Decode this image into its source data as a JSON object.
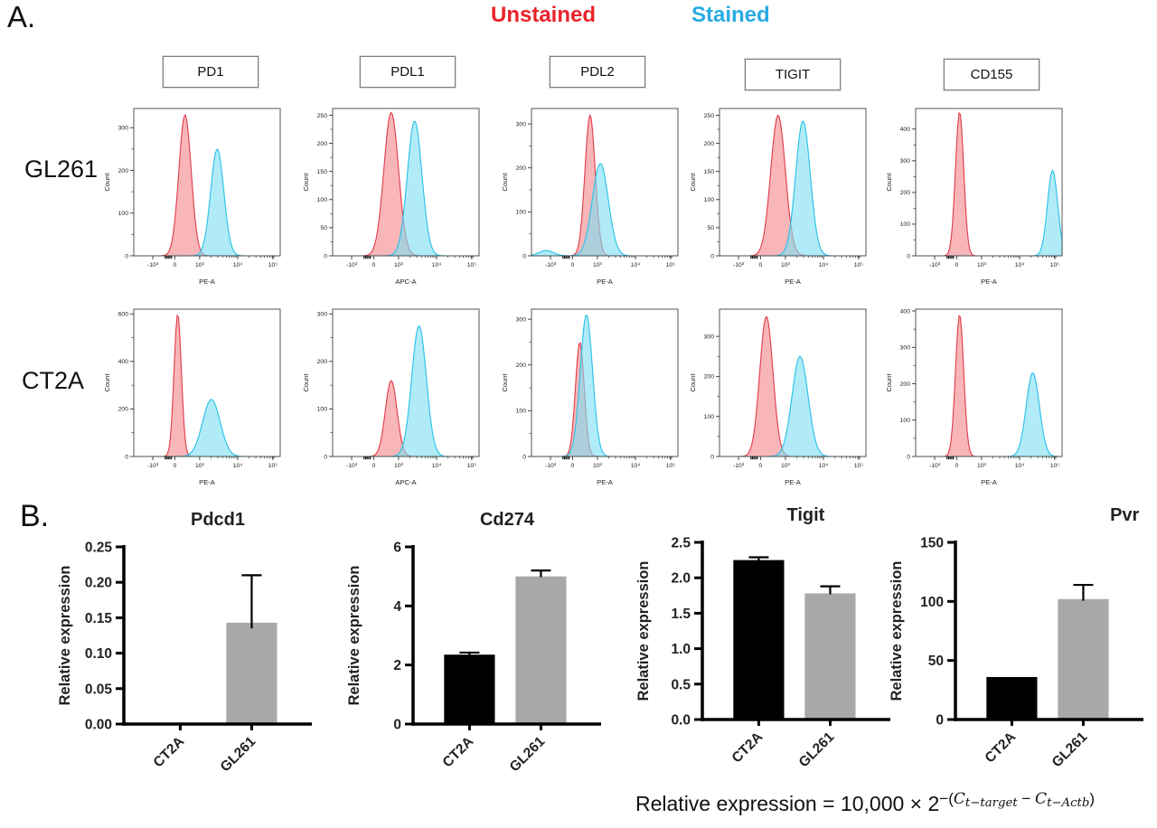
{
  "panel_a": {
    "label": "A.",
    "legend": {
      "unstained_label": "Unstained",
      "unstained_color": "#e8232a",
      "stained_label": "Stained",
      "stained_color": "#29abe2"
    },
    "column_headers": [
      "PD1",
      "PDL1",
      "PDL2",
      "TIGIT",
      "CD155"
    ],
    "row_labels": [
      "GL261",
      "CT2A"
    ]
  },
  "panel_b": {
    "label": "B.",
    "formula": {
      "base": "Relative expression = 10,000 × 2",
      "exp_open": "−(",
      "c1": "C",
      "sub1": "t−target",
      "minus": " − ",
      "c2": "C",
      "sub2": "t−Actb",
      "exp_close": ")"
    }
  },
  "chart_data": [
    {
      "id": "hist-gl261-pd1",
      "type": "area",
      "subtype": "flow-histogram",
      "cell_line": "GL261",
      "marker": "PD1",
      "xlabel": "PE-A",
      "ylabel": "Count",
      "x_ticks": [
        "-10³",
        "0",
        "10³",
        "10⁴",
        "10⁵"
      ],
      "y_ticks": [
        0,
        100,
        200,
        300
      ],
      "ymax": 345,
      "series": [
        {
          "name": "Unstained",
          "peak_frac": 0.35,
          "peak_count": 330,
          "sigma": 0.042,
          "peak_channel": "~4×10²",
          "fill": "#f4898e",
          "stroke": "#e23a47"
        },
        {
          "name": "Stained",
          "peak_frac": 0.57,
          "peak_count": 250,
          "sigma": 0.045,
          "peak_channel": "~3×10³",
          "fill": "#7fdff2",
          "stroke": "#27c0e8"
        }
      ]
    },
    {
      "id": "hist-gl261-pdl1",
      "type": "area",
      "subtype": "flow-histogram",
      "cell_line": "GL261",
      "marker": "PDL1",
      "xlabel": "APC-A",
      "ylabel": "Count",
      "x_ticks": [
        "-10³",
        "0",
        "10³",
        "10⁴",
        "10⁵"
      ],
      "y_ticks": [
        0,
        50,
        100,
        150,
        200,
        250
      ],
      "ymax": 262,
      "series": [
        {
          "name": "Unstained",
          "peak_frac": 0.4,
          "peak_count": 255,
          "sigma": 0.05,
          "peak_channel": "~8×10²",
          "fill": "#f4898e",
          "stroke": "#e23a47"
        },
        {
          "name": "Stained",
          "peak_frac": 0.56,
          "peak_count": 240,
          "sigma": 0.05,
          "peak_channel": "~3×10³",
          "fill": "#7fdff2",
          "stroke": "#27c0e8"
        }
      ]
    },
    {
      "id": "hist-gl261-pdl2",
      "type": "area",
      "subtype": "flow-histogram",
      "cell_line": "GL261",
      "marker": "PDL2",
      "xlabel": "PE-A",
      "ylabel": "Count",
      "x_ticks": [
        "-10³",
        "0",
        "10³",
        "10⁴",
        "10⁵"
      ],
      "y_ticks": [
        0,
        100,
        200,
        300
      ],
      "ymax": 335,
      "series": [
        {
          "name": "Unstained",
          "peak_frac": 0.4,
          "peak_count": 320,
          "sigma": 0.035,
          "peak_channel": "~5×10²",
          "fill": "#f4898e",
          "stroke": "#e23a47"
        },
        {
          "name": "Stained",
          "peak_frac": 0.47,
          "peak_count": 210,
          "sigma": 0.055,
          "peak_channel": "~10³",
          "fill": "#7fdff2",
          "stroke": "#27c0e8",
          "bumps": [
            {
              "x": 0.1,
              "h": 12,
              "sigma": 0.05
            }
          ]
        }
      ]
    },
    {
      "id": "hist-gl261-tigit",
      "type": "area",
      "subtype": "flow-histogram",
      "cell_line": "GL261",
      "marker": "TIGIT",
      "xlabel": "PE-A",
      "ylabel": "Count",
      "x_ticks": [
        "-10³",
        "0",
        "10³",
        "10⁴",
        "10⁵"
      ],
      "y_ticks": [
        0,
        50,
        100,
        150,
        200,
        250
      ],
      "ymax": 262,
      "series": [
        {
          "name": "Unstained",
          "peak_frac": 0.4,
          "peak_count": 250,
          "sigma": 0.05,
          "peak_channel": "~7×10²",
          "fill": "#f4898e",
          "stroke": "#e23a47"
        },
        {
          "name": "Stained",
          "peak_frac": 0.57,
          "peak_count": 240,
          "sigma": 0.05,
          "peak_channel": "~3×10³",
          "fill": "#7fdff2",
          "stroke": "#27c0e8"
        }
      ]
    },
    {
      "id": "hist-gl261-cd155",
      "type": "area",
      "subtype": "flow-histogram",
      "cell_line": "GL261",
      "marker": "CD155",
      "xlabel": "PE-A",
      "ylabel": "Count",
      "x_ticks": [
        "-10³",
        "0",
        "10³",
        "10⁴",
        "10⁵"
      ],
      "y_ticks": [
        0,
        100,
        200,
        300,
        400
      ],
      "ymax": 465,
      "series": [
        {
          "name": "Unstained",
          "peak_frac": 0.3,
          "peak_count": 455,
          "sigma": 0.028,
          "peak_channel": "~2×10²",
          "fill": "#f4898e",
          "stroke": "#e23a47"
        },
        {
          "name": "Stained",
          "peak_frac": 0.935,
          "peak_count": 270,
          "sigma": 0.035,
          "peak_channel": "~8×10⁴",
          "fill": "#7fdff2",
          "stroke": "#27c0e8"
        }
      ]
    },
    {
      "id": "hist-ct2a-pd1",
      "type": "area",
      "subtype": "flow-histogram",
      "cell_line": "CT2A",
      "marker": "PD1",
      "xlabel": "PE-A",
      "ylabel": "Count",
      "x_ticks": [
        "-10³",
        "0",
        "10³",
        "10⁴",
        "10⁵"
      ],
      "y_ticks": [
        0,
        200,
        400,
        600
      ],
      "ymax": 620,
      "series": [
        {
          "name": "Unstained",
          "peak_frac": 0.3,
          "peak_count": 600,
          "sigma": 0.025,
          "peak_channel": "~1.5×10²",
          "fill": "#f4898e",
          "stroke": "#e23a47"
        },
        {
          "name": "Stained",
          "peak_frac": 0.53,
          "peak_count": 240,
          "sigma": 0.06,
          "peak_channel": "~2×10³",
          "fill": "#7fdff2",
          "stroke": "#27c0e8"
        }
      ]
    },
    {
      "id": "hist-ct2a-pdl1",
      "type": "area",
      "subtype": "flow-histogram",
      "cell_line": "CT2A",
      "marker": "PDL1",
      "xlabel": "APC-A",
      "ylabel": "Count",
      "x_ticks": [
        "-10³",
        "0",
        "10³",
        "10⁴",
        "10⁵"
      ],
      "y_ticks": [
        0,
        100,
        200,
        300
      ],
      "ymax": 310,
      "series": [
        {
          "name": "Unstained",
          "peak_frac": 0.4,
          "peak_count": 160,
          "sigma": 0.04,
          "peak_channel": "~6×10²",
          "fill": "#f4898e",
          "stroke": "#e23a47"
        },
        {
          "name": "Stained",
          "peak_frac": 0.59,
          "peak_count": 275,
          "sigma": 0.05,
          "peak_channel": "~3×10³",
          "fill": "#7fdff2",
          "stroke": "#27c0e8"
        }
      ]
    },
    {
      "id": "hist-ct2a-pdl2",
      "type": "area",
      "subtype": "flow-histogram",
      "cell_line": "CT2A",
      "marker": "PDL2",
      "xlabel": "PE-A",
      "ylabel": "Count",
      "x_ticks": [
        "-10³",
        "0",
        "10³",
        "10⁴",
        "10⁵"
      ],
      "y_ticks": [
        0,
        100,
        200,
        300
      ],
      "ymax": 322,
      "series": [
        {
          "name": "Unstained",
          "peak_frac": 0.33,
          "peak_count": 250,
          "sigma": 0.03,
          "peak_channel": "~3×10²",
          "fill": "#f4898e",
          "stroke": "#e23a47"
        },
        {
          "name": "Stained",
          "peak_frac": 0.375,
          "peak_count": 310,
          "sigma": 0.042,
          "peak_channel": "~5×10²",
          "fill": "#7fdff2",
          "stroke": "#27c0e8"
        }
      ]
    },
    {
      "id": "hist-ct2a-tigit",
      "type": "area",
      "subtype": "flow-histogram",
      "cell_line": "CT2A",
      "marker": "TIGIT",
      "xlabel": "PE-A",
      "ylabel": "Count",
      "x_ticks": [
        "-10³",
        "0",
        "10³",
        "10⁴",
        "10⁵"
      ],
      "y_ticks": [
        0,
        100,
        200,
        300
      ],
      "ymax": 368,
      "series": [
        {
          "name": "Unstained",
          "peak_frac": 0.32,
          "peak_count": 350,
          "sigma": 0.045,
          "peak_channel": "~3×10²",
          "fill": "#f4898e",
          "stroke": "#e23a47"
        },
        {
          "name": "Stained",
          "peak_frac": 0.55,
          "peak_count": 250,
          "sigma": 0.055,
          "peak_channel": "~2.5×10³",
          "fill": "#7fdff2",
          "stroke": "#27c0e8"
        }
      ]
    },
    {
      "id": "hist-ct2a-cd155",
      "type": "area",
      "subtype": "flow-histogram",
      "cell_line": "CT2A",
      "marker": "CD155",
      "xlabel": "PE-A",
      "ylabel": "Count",
      "x_ticks": [
        "-10³",
        "0",
        "10³",
        "10⁴",
        "10⁵"
      ],
      "y_ticks": [
        0,
        100,
        200,
        300,
        400
      ],
      "ymax": 405,
      "series": [
        {
          "name": "Unstained",
          "peak_frac": 0.3,
          "peak_count": 390,
          "sigma": 0.028,
          "peak_channel": "~2×10²",
          "fill": "#f4898e",
          "stroke": "#e23a47"
        },
        {
          "name": "Stained",
          "peak_frac": 0.8,
          "peak_count": 230,
          "sigma": 0.045,
          "peak_channel": "~3×10⁴",
          "fill": "#7fdff2",
          "stroke": "#27c0e8"
        }
      ]
    },
    {
      "id": "bar-pdcd1",
      "type": "bar",
      "title": "Pdcd1",
      "ylabel": "Relative expression",
      "categories": [
        "CT2A",
        "GL261"
      ],
      "values": [
        0,
        0.143
      ],
      "errors": [
        0,
        0.067
      ],
      "bar_colors": [
        "#000000",
        "#a8a8a8"
      ],
      "y_tick_labels": [
        "0.00",
        "0.05",
        "0.10",
        "0.15",
        "0.20",
        "0.25"
      ],
      "y_tick_values": [
        0,
        0.05,
        0.1,
        0.15,
        0.2,
        0.25
      ],
      "ymax": 0.25,
      "title_x_frac": 0.5
    },
    {
      "id": "bar-cd274",
      "type": "bar",
      "title": "Cd274",
      "ylabel": "Relative expression",
      "categories": [
        "CT2A",
        "GL261"
      ],
      "values": [
        2.35,
        5.0
      ],
      "errors": [
        0.07,
        0.2
      ],
      "bar_colors": [
        "#000000",
        "#a8a8a8"
      ],
      "y_tick_labels": [
        "0",
        "2",
        "4",
        "6"
      ],
      "y_tick_values": [
        0,
        2,
        4,
        6
      ],
      "ymax": 6,
      "title_x_frac": 0.5
    },
    {
      "id": "bar-tigit",
      "type": "bar",
      "title": "Tigit",
      "ylabel": "Relative expression",
      "categories": [
        "CT2A",
        "GL261"
      ],
      "values": [
        2.25,
        1.78
      ],
      "errors": [
        0.04,
        0.1
      ],
      "bar_colors": [
        "#000000",
        "#a8a8a8"
      ],
      "y_tick_labels": [
        "0.0",
        "0.5",
        "1.0",
        "1.5",
        "2.0",
        "2.5"
      ],
      "y_tick_values": [
        0,
        0.5,
        1,
        1.5,
        2,
        2.5
      ],
      "ymax": 2.5,
      "title_x_frac": 0.55
    },
    {
      "id": "bar-pvr",
      "type": "bar",
      "title": "Pvr",
      "ylabel": "Relative expression",
      "categories": [
        "CT2A",
        "GL261"
      ],
      "values": [
        36,
        102
      ],
      "errors": [
        0,
        12
      ],
      "bar_colors": [
        "#000000",
        "#a8a8a8"
      ],
      "y_tick_labels": [
        "0",
        "50",
        "100",
        "150"
      ],
      "y_tick_values": [
        0,
        50,
        100,
        150
      ],
      "ymax": 150,
      "title_x_frac": 0.9
    }
  ]
}
